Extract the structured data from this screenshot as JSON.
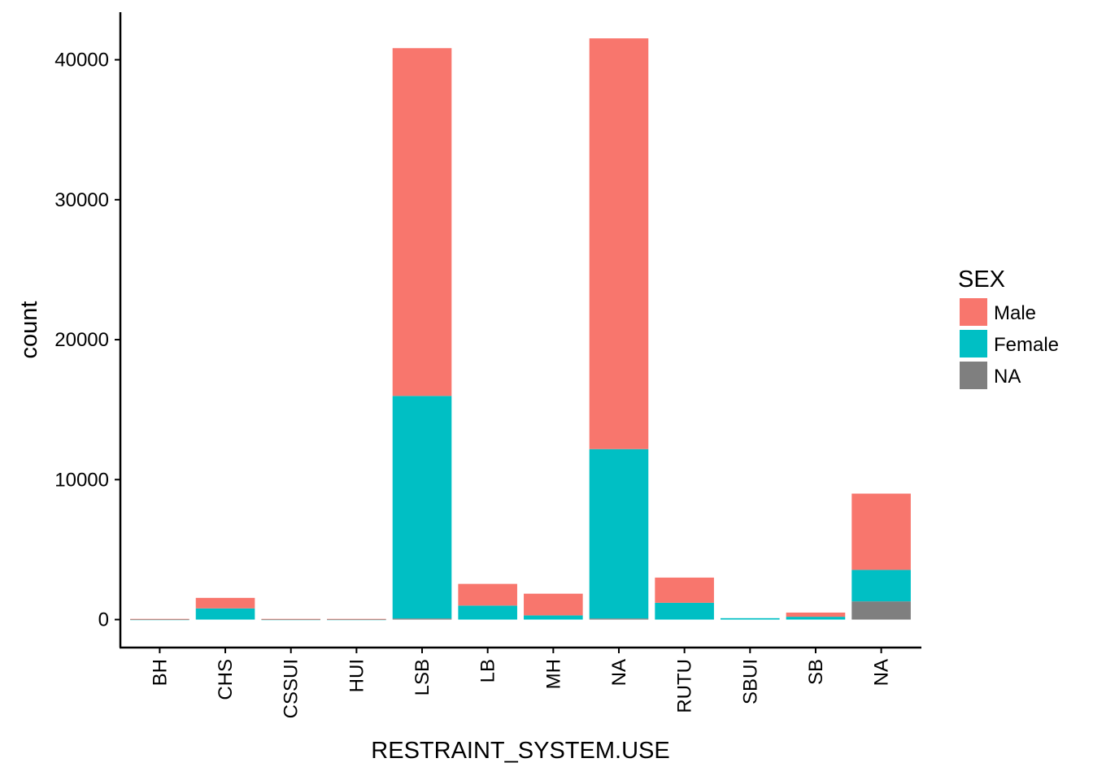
{
  "chart_data": {
    "type": "bar",
    "stacked": true,
    "xlabel": "RESTRAINT_SYSTEM.USE",
    "ylabel": "count",
    "ylim": [
      -2000,
      43400
    ],
    "yticks": [
      0,
      10000,
      20000,
      30000,
      40000
    ],
    "categories": [
      "BH",
      "CHS",
      "CSSUI",
      "HUI",
      "LSB",
      "LB",
      "MH",
      "NA",
      "RUTU",
      "SBUI",
      "SB",
      "NA"
    ],
    "series": [
      {
        "name": "NA",
        "color": "#7f7f7f",
        "values": [
          0,
          0,
          0,
          0,
          80,
          0,
          0,
          80,
          0,
          0,
          0,
          1300
        ]
      },
      {
        "name": "Female",
        "color": "#00bfc4",
        "values": [
          20,
          800,
          20,
          20,
          15900,
          1000,
          300,
          12100,
          1200,
          100,
          200,
          2250
        ]
      },
      {
        "name": "Male",
        "color": "#f8766d",
        "values": [
          30,
          750,
          30,
          30,
          24850,
          1550,
          1550,
          29350,
          1800,
          0,
          300,
          5450
        ]
      }
    ],
    "legend": {
      "title": "SEX",
      "placement": "right",
      "entries": [
        {
          "label": "Male",
          "color": "#f8766d"
        },
        {
          "label": "Female",
          "color": "#00bfc4"
        },
        {
          "label": "NA",
          "color": "#7f7f7f"
        }
      ]
    },
    "grid": false
  }
}
